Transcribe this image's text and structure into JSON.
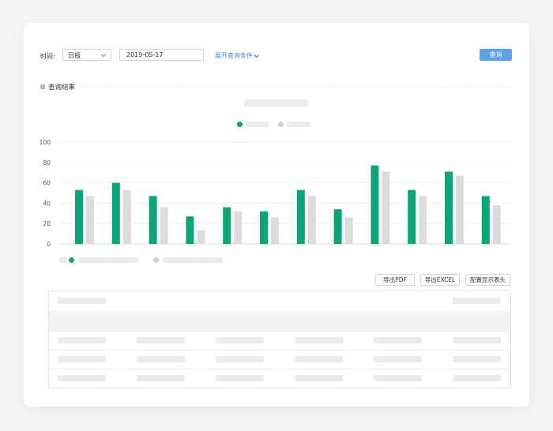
{
  "filters": {
    "time_label": "时间:",
    "period_value": "日报",
    "date_value": "2019-05-17",
    "expand_label": "展开查询条件",
    "query_label": "查询"
  },
  "results": {
    "title": "查询结果"
  },
  "colors": {
    "primary": "#0aa678",
    "secondary": "#dcdcdc",
    "accent_blue": "#5aa2ea",
    "link": "#3d8ee8"
  },
  "chart_data": {
    "type": "bar",
    "categories": [
      "",
      "",
      "",
      "",
      "",
      "",
      "",
      "",
      "",
      "",
      "",
      ""
    ],
    "yticks": [
      "100",
      "80",
      "60",
      "40",
      "20",
      "0"
    ],
    "ylim": [
      0,
      100
    ],
    "series": [
      {
        "values": [
          53,
          60,
          47,
          27,
          36,
          32,
          53,
          34,
          77,
          53,
          71,
          47
        ]
      },
      {
        "values": [
          47,
          53,
          36,
          13,
          32,
          26,
          47,
          26,
          71,
          47,
          67,
          38
        ]
      }
    ],
    "grid": true,
    "legend": "top-center"
  },
  "table_buttons": {
    "pdf": "导出PDF",
    "excel": "导出EXCEL",
    "config": "配置显示表头"
  }
}
